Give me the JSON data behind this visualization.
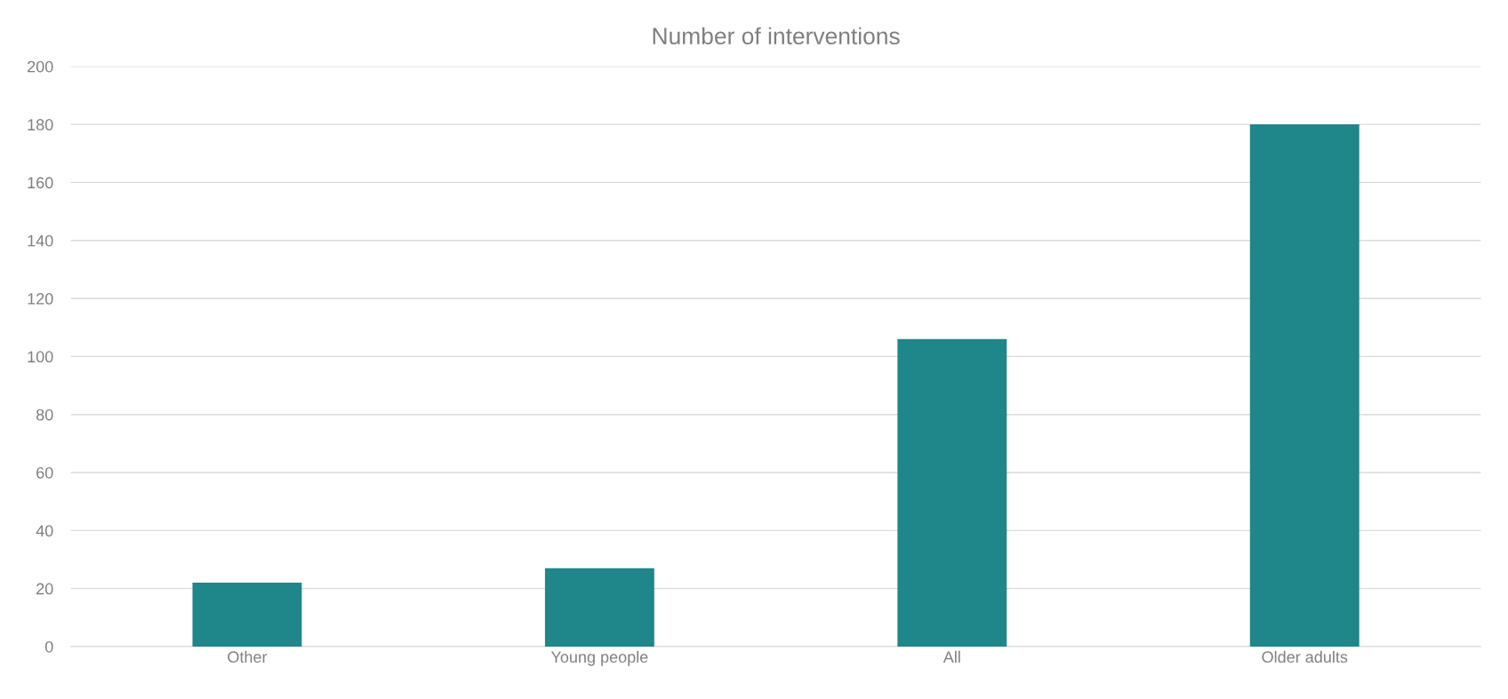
{
  "chart_data": {
    "type": "bar",
    "title": "Number of interventions",
    "categories": [
      "Other",
      "Young people",
      "All",
      "Older adults"
    ],
    "values": [
      22,
      27,
      106,
      180
    ],
    "color": "#1f868a",
    "ylim": [
      0,
      200
    ],
    "yticks": [
      0,
      20,
      40,
      60,
      80,
      100,
      120,
      140,
      160,
      180,
      200
    ],
    "grid": "y"
  }
}
